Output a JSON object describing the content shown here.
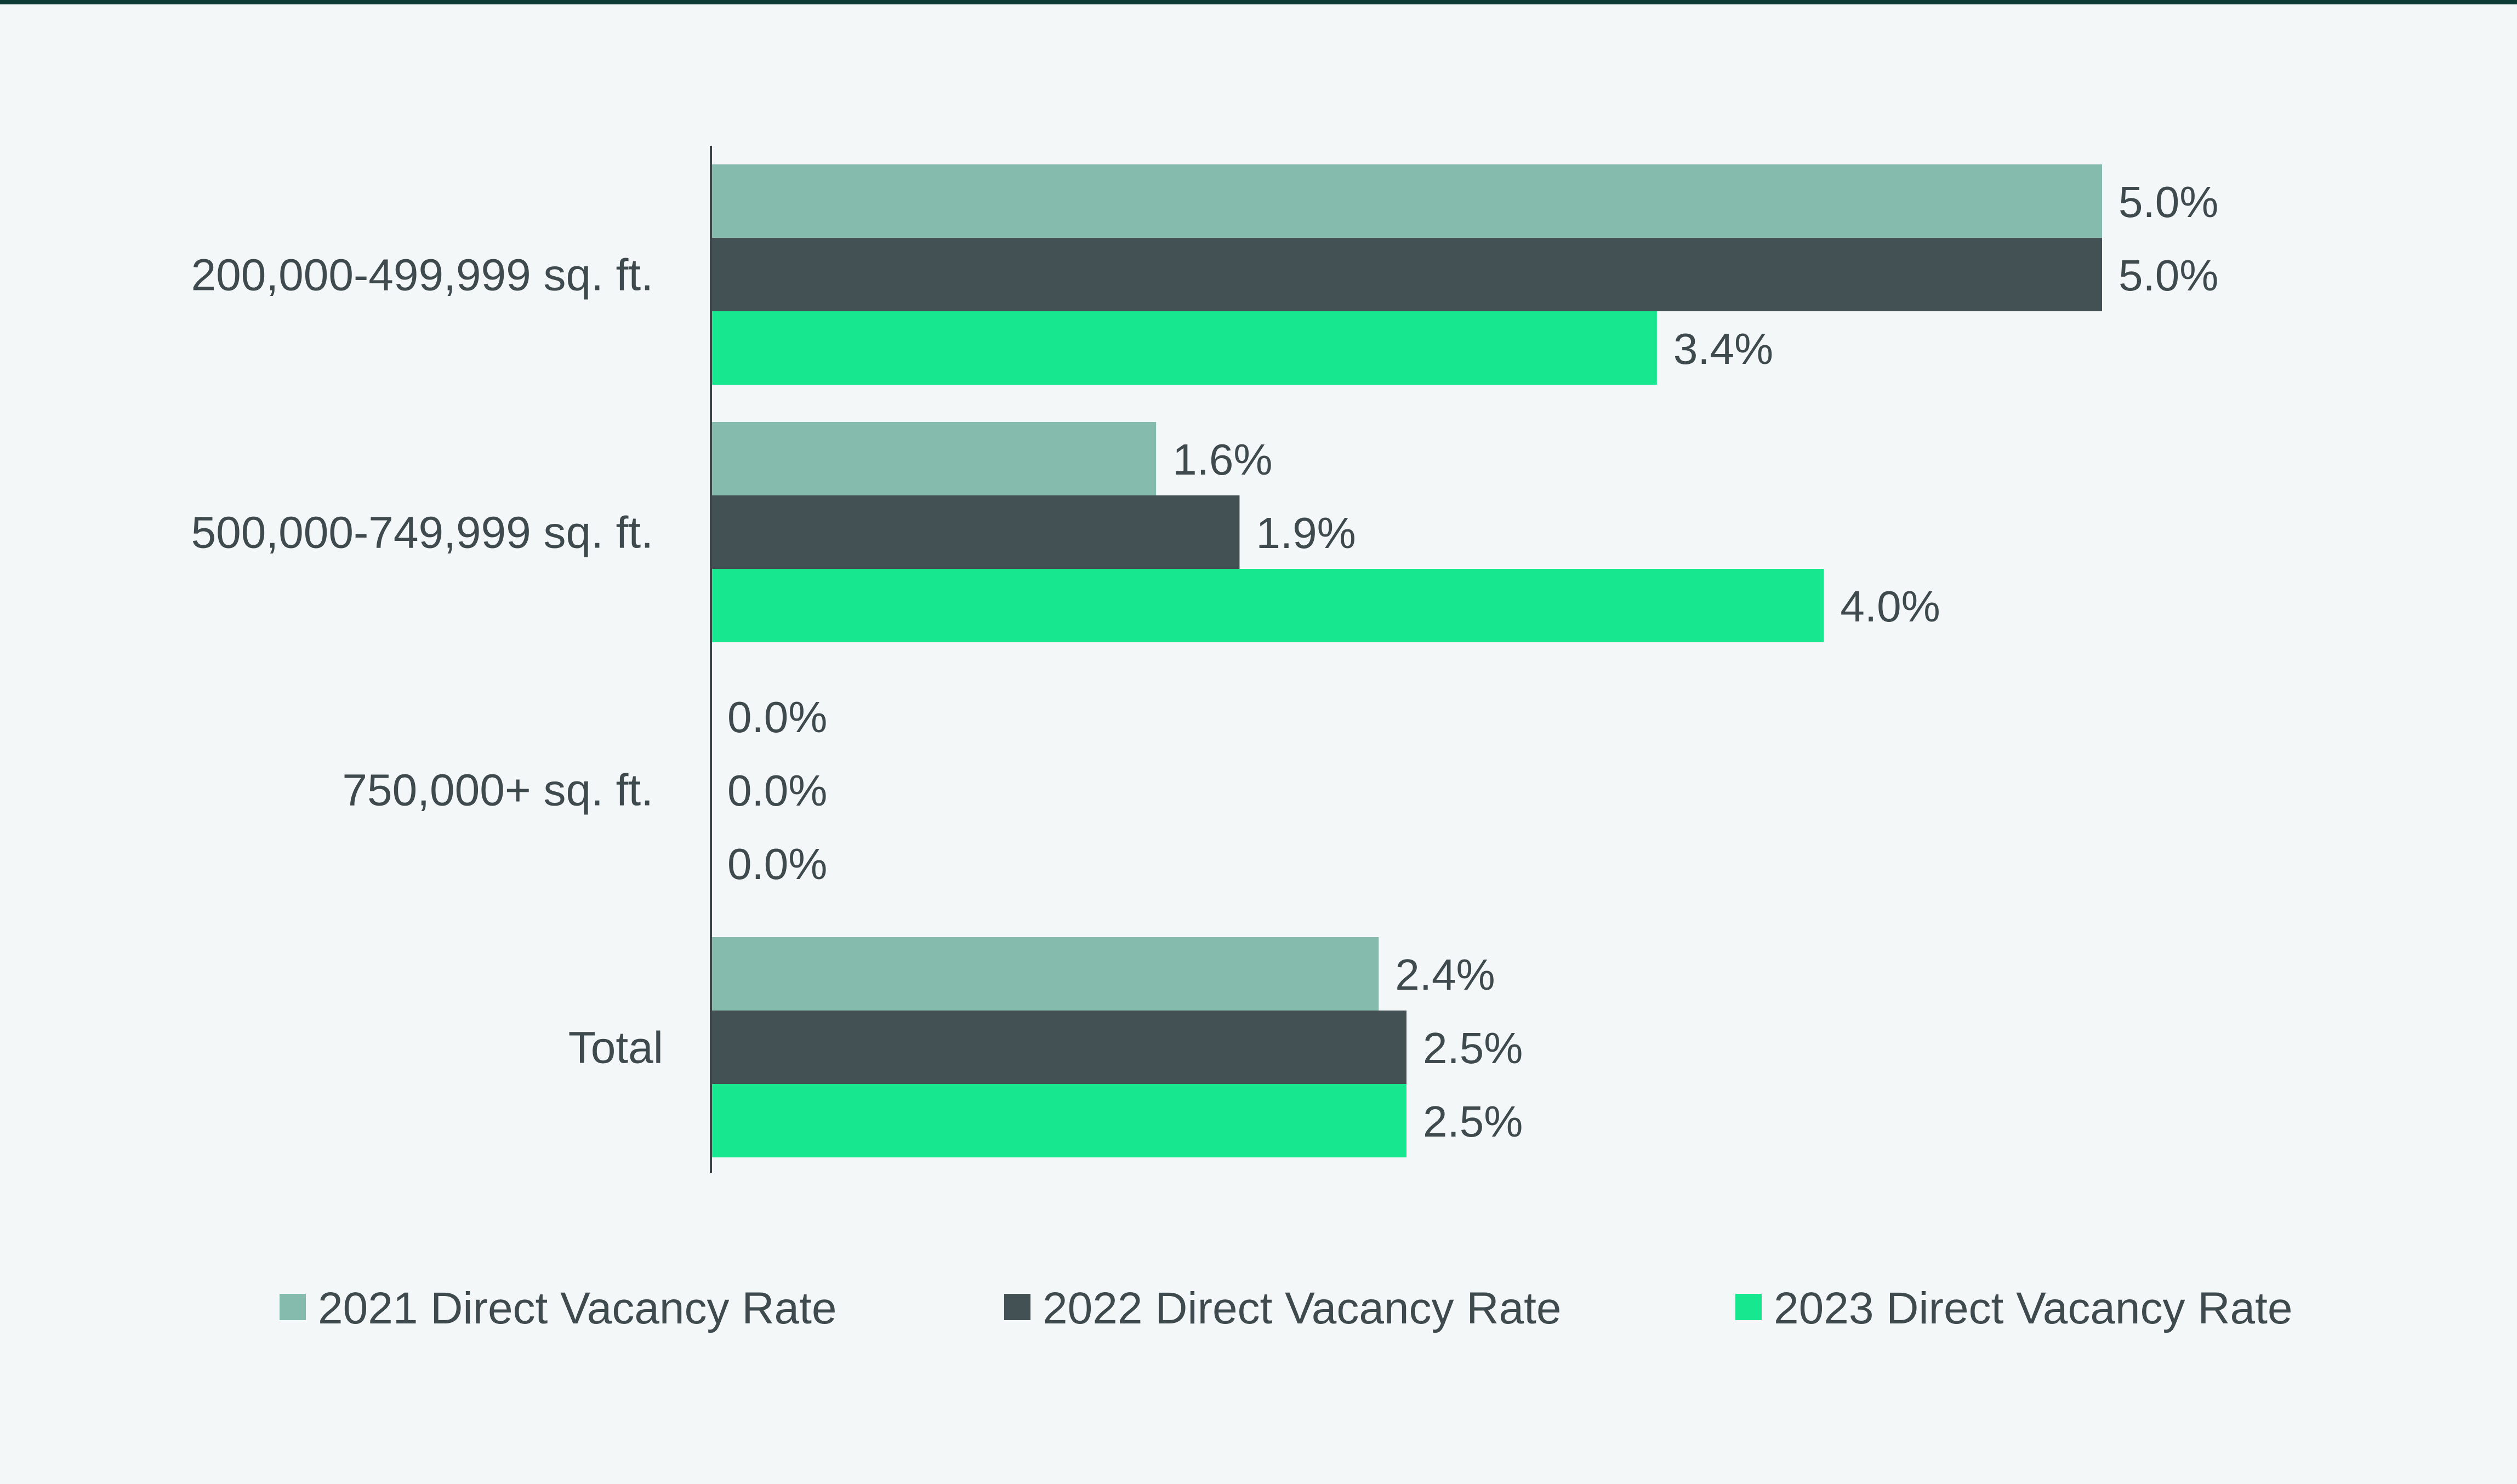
{
  "colors": {
    "background": "#f3f7f8",
    "top_rule": "#0c3a35",
    "axis": "#3b4446",
    "text": "#3e4a4d",
    "series_2021": "#84bbad",
    "series_2022": "#435155",
    "series_2023": "#17e88f"
  },
  "chart_data": {
    "type": "bar",
    "orientation": "horizontal",
    "title": "",
    "xlabel": "",
    "ylabel": "",
    "categories": [
      "200,000-499,999 sq. ft.",
      "500,000-749,999 sq. ft.",
      "750,000+ sq. ft.",
      "Total"
    ],
    "series": [
      {
        "name": "2021 Direct Vacancy Rate",
        "values": [
          5.0,
          1.6,
          0.0,
          2.4
        ],
        "labels": [
          "5.0%",
          "1.6%",
          "0.0%",
          "2.4%"
        ]
      },
      {
        "name": "2022 Direct Vacancy Rate",
        "values": [
          5.0,
          1.9,
          0.0,
          2.5
        ],
        "labels": [
          "5.0%",
          "1.9%",
          "0.0%",
          "2.5%"
        ]
      },
      {
        "name": "2023 Direct Vacancy Rate",
        "values": [
          3.4,
          4.0,
          0.0,
          2.5
        ],
        "labels": [
          "3.4%",
          "4.0%",
          "0.0%",
          "2.5%"
        ]
      }
    ],
    "xlim": [
      0,
      5.0
    ],
    "value_axis_visible": false,
    "grid": false,
    "data_labels": true,
    "legend": "bottom"
  }
}
